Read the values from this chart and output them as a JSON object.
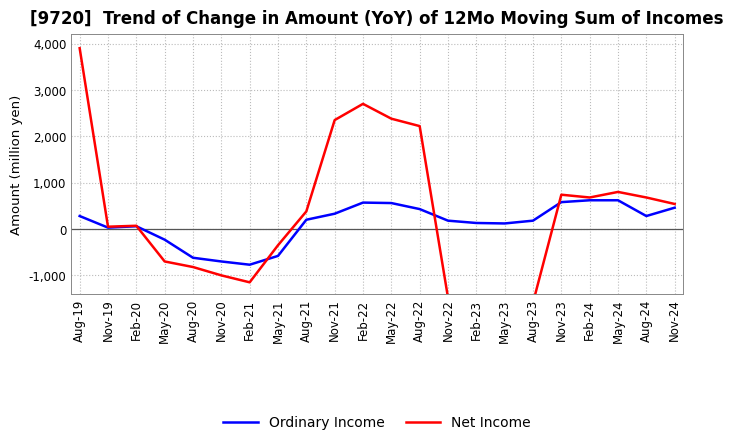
{
  "title": "[9720]  Trend of Change in Amount (YoY) of 12Mo Moving Sum of Incomes",
  "ylabel": "Amount (million yen)",
  "ylim": [
    -1400,
    4200
  ],
  "yticks": [
    -1000,
    0,
    1000,
    2000,
    3000,
    4000
  ],
  "x_labels": [
    "Aug-19",
    "Nov-19",
    "Feb-20",
    "May-20",
    "Aug-20",
    "Nov-20",
    "Feb-21",
    "May-21",
    "Aug-21",
    "Nov-21",
    "Feb-22",
    "May-22",
    "Aug-22",
    "Nov-22",
    "Feb-23",
    "May-23",
    "Aug-23",
    "Nov-23",
    "Feb-24",
    "May-24",
    "Aug-24",
    "Nov-24"
  ],
  "ordinary_income": [
    280,
    30,
    60,
    -230,
    -620,
    -700,
    -770,
    -580,
    200,
    330,
    570,
    560,
    430,
    180,
    130,
    120,
    180,
    580,
    620,
    620,
    280,
    460
  ],
  "net_income": [
    3900,
    50,
    70,
    -700,
    -820,
    -1000,
    -1150,
    -350,
    380,
    2350,
    2700,
    2380,
    2220,
    -1480,
    -1570,
    -1600,
    -1590,
    740,
    680,
    800,
    680,
    540
  ],
  "ordinary_color": "#0000ff",
  "net_color": "#ff0000",
  "background_color": "#ffffff",
  "grid_color": "#bbbbbb",
  "title_fontsize": 12,
  "label_fontsize": 9.5,
  "tick_fontsize": 8.5,
  "legend_fontsize": 10
}
